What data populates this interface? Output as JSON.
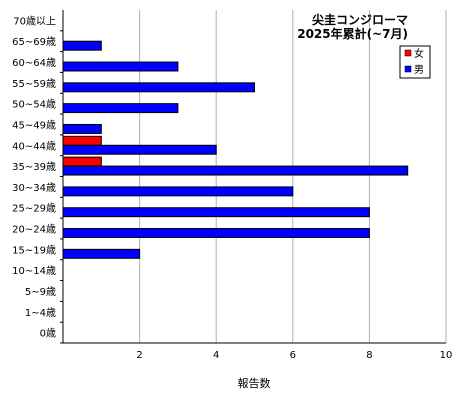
{
  "chart_data": {
    "type": "bar",
    "orientation": "horizontal",
    "title": "尖圭コンジローマ",
    "subtitle": "2025年累計(~7月)",
    "xlabel": "報告数",
    "ylabel": "",
    "xlim": [
      0,
      10
    ],
    "x_ticks": [
      "2",
      "4",
      "6",
      "8",
      "10"
    ],
    "grid": true,
    "legend_position": "top-right",
    "categories": [
      "70歳以上",
      "65~69歳",
      "60~64歳",
      "55~59歳",
      "50~54歳",
      "45~49歳",
      "40~44歳",
      "35~39歳",
      "30~34歳",
      "25~29歳",
      "20~24歳",
      "15~19歳",
      "10~14歳",
      "5~9歳",
      "1~4歳",
      "0歳"
    ],
    "series": [
      {
        "name": "女",
        "color": "#ff0000",
        "values": [
          0,
          0,
          0,
          0,
          0,
          0,
          1,
          1,
          0,
          0,
          0,
          0,
          0,
          0,
          0,
          0
        ]
      },
      {
        "name": "男",
        "color": "#0000ff",
        "values": [
          0,
          1,
          3,
          5,
          3,
          1,
          4,
          9,
          6,
          8,
          8,
          2,
          0,
          0,
          0,
          0
        ]
      }
    ]
  }
}
